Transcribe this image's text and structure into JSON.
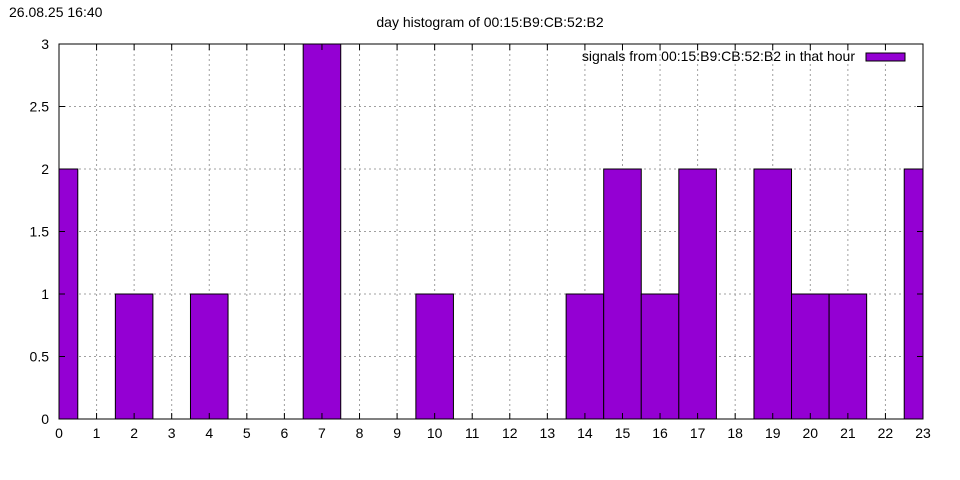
{
  "timestamp": "26.08.25 16:40",
  "chart_data": {
    "type": "bar",
    "title": "day histogram of 00:15:B9:CB:52:B2",
    "xlabel": "",
    "ylabel": "",
    "categories": [
      "0",
      "1",
      "2",
      "3",
      "4",
      "5",
      "6",
      "7",
      "8",
      "9",
      "10",
      "11",
      "12",
      "13",
      "14",
      "15",
      "16",
      "17",
      "18",
      "19",
      "20",
      "21",
      "22",
      "23"
    ],
    "series": [
      {
        "name": "signals from 00:15:B9:CB:52:B2 in that hour",
        "values": [
          2,
          0,
          1,
          0,
          1,
          0,
          0,
          3,
          0,
          0,
          1,
          0,
          0,
          0,
          1,
          2,
          1,
          2,
          0,
          2,
          1,
          1,
          0,
          2
        ],
        "color": "#9400d3"
      }
    ],
    "xlim": [
      0,
      23
    ],
    "ylim": [
      0,
      3
    ],
    "yticks": [
      "0",
      "0.5",
      "1",
      "1.5",
      "2",
      "2.5",
      "3"
    ],
    "grid": true,
    "legend_position": "top-right"
  }
}
